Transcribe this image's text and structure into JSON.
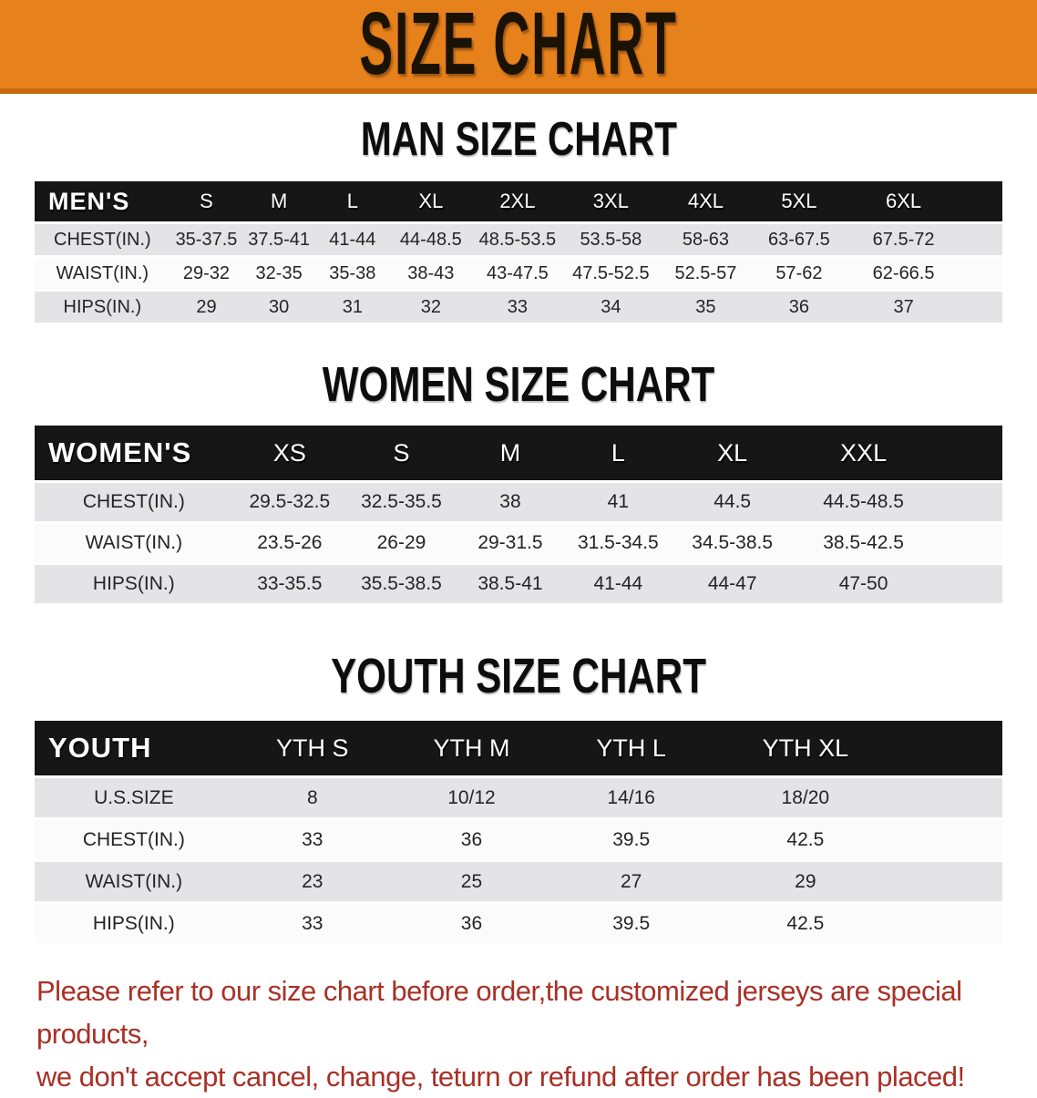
{
  "banner": {
    "title": "SIZE CHART",
    "bg_color": "#E6811C",
    "border_color": "#C8690E",
    "text_color": "#1b1206"
  },
  "colors": {
    "table_header_bg": "#161616",
    "table_header_text": "#ffffff",
    "row_stripe_gray": "#E4E4E6",
    "row_stripe_white": "#FBFBFB",
    "disclaimer_red": "#A93026"
  },
  "sections": [
    {
      "id": "men",
      "heading": "MAN SIZE CHART",
      "table": {
        "label": "MEN'S",
        "sizes": [
          "S",
          "M",
          "L",
          "XL",
          "2XL",
          "3XL",
          "4XL",
          "5XL",
          "6XL"
        ],
        "rows": [
          {
            "label": "CHEST(IN.)",
            "values": [
              "35-37.5",
              "37.5-41",
              "41-44",
              "44-48.5",
              "48.5-53.5",
              "53.5-58",
              "58-63",
              "63-67.5",
              "67.5-72"
            ]
          },
          {
            "label": "WAIST(IN.)",
            "values": [
              "29-32",
              "32-35",
              "35-38",
              "38-43",
              "43-47.5",
              "47.5-52.5",
              "52.5-57",
              "57-62",
              "62-66.5"
            ]
          },
          {
            "label": "HIPS(IN.)",
            "values": [
              "29",
              "30",
              "31",
              "32",
              "33",
              "34",
              "35",
              "36",
              "37"
            ]
          }
        ]
      }
    },
    {
      "id": "women",
      "heading": "WOMEN SIZE CHART",
      "table": {
        "label": "WOMEN'S",
        "sizes": [
          "XS",
          "S",
          "M",
          "L",
          "XL",
          "XXL"
        ],
        "rows": [
          {
            "label": "CHEST(IN.)",
            "values": [
              "29.5-32.5",
              "32.5-35.5",
              "38",
              "41",
              "44.5",
              "44.5-48.5"
            ]
          },
          {
            "label": "WAIST(IN.)",
            "values": [
              "23.5-26",
              "26-29",
              "29-31.5",
              "31.5-34.5",
              "34.5-38.5",
              "38.5-42.5"
            ]
          },
          {
            "label": "HIPS(IN.)",
            "values": [
              "33-35.5",
              "35.5-38.5",
              "38.5-41",
              "41-44",
              "44-47",
              "47-50"
            ]
          }
        ]
      }
    },
    {
      "id": "youth",
      "heading": "YOUTH SIZE CHART",
      "table": {
        "label": "YOUTH",
        "sizes": [
          "YTH S",
          "YTH M",
          "YTH L",
          "YTH XL"
        ],
        "rows": [
          {
            "label": "U.S.SIZE",
            "values": [
              "8",
              "10/12",
              "14/16",
              "18/20"
            ]
          },
          {
            "label": "CHEST(IN.)",
            "values": [
              "33",
              "36",
              "39.5",
              "42.5"
            ]
          },
          {
            "label": "WAIST(IN.)",
            "values": [
              "23",
              "25",
              "27",
              "29"
            ]
          },
          {
            "label": "HIPS(IN.)",
            "values": [
              "33",
              "36",
              "39.5",
              "42.5"
            ]
          }
        ]
      }
    }
  ],
  "disclaimer": {
    "lines": [
      "Please refer to our size chart before order,the customized jerseys are special products,",
      "we don't accept cancel, change, teturn or refund after order has been placed!"
    ]
  }
}
